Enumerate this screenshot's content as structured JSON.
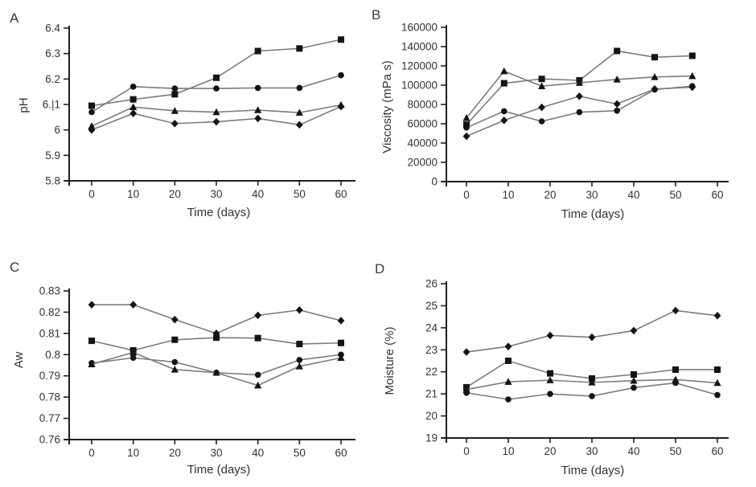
{
  "figure": {
    "background": "#ffffff",
    "axis_color": "#1f1f1f",
    "line_color": "#7c7c7c",
    "marker_color": "#141414",
    "text_color": "#333333"
  },
  "chart_data": [
    {
      "panel": "A",
      "type": "line",
      "xlabel": "Time (days)",
      "ylabel": "pH",
      "xlim": [
        0,
        60
      ],
      "ylim": [
        5.8,
        6.4
      ],
      "grid": false,
      "legend": "none",
      "xticks": [
        0,
        10,
        20,
        30,
        40,
        50,
        60
      ],
      "ytick_values": [
        5.8,
        5.9,
        6.0,
        6.1,
        6.2,
        6.3,
        6.4
      ],
      "ytick_labels": [
        "5.8",
        "5.9",
        "6",
        "6.|1",
        "6.2",
        "6.3",
        "6.4"
      ],
      "x": [
        0,
        10,
        20,
        30,
        40,
        50,
        60
      ],
      "series": [
        {
          "name": "square-series",
          "marker": "square",
          "values": [
            6.095,
            6.12,
            6.14,
            6.205,
            6.31,
            6.32,
            6.355
          ]
        },
        {
          "name": "circle-series",
          "marker": "circle",
          "values": [
            6.07,
            6.17,
            6.163,
            6.163,
            6.165,
            6.165,
            6.215
          ]
        },
        {
          "name": "triangle-series",
          "marker": "triangle",
          "values": [
            6.015,
            6.09,
            6.075,
            6.07,
            6.078,
            6.068,
            6.098
          ]
        },
        {
          "name": "diamond-series",
          "marker": "diamond",
          "values": [
            6.0,
            6.065,
            6.025,
            6.032,
            6.045,
            6.02,
            6.092
          ]
        }
      ]
    },
    {
      "panel": "B",
      "type": "line",
      "xlabel": "Time (days)",
      "ylabel": "Viscosity (mPa s)",
      "xlim": [
        0,
        60
      ],
      "ylim": [
        0,
        160000
      ],
      "grid": false,
      "legend": "none",
      "xticks": [
        0,
        10,
        20,
        30,
        40,
        50,
        60
      ],
      "ytick_values": [
        0,
        20000,
        40000,
        60000,
        80000,
        100000,
        120000,
        140000,
        160000
      ],
      "ytick_labels": [
        "0",
        "20000",
        "40000",
        "60000",
        "80000",
        "100000",
        "120000",
        "140000",
        "160000"
      ],
      "x": [
        0,
        9,
        18,
        27,
        36,
        45,
        54
      ],
      "series": [
        {
          "name": "square-series",
          "marker": "square",
          "values": [
            59000,
            102000,
            106500,
            105000,
            135500,
            129000,
            130500
          ]
        },
        {
          "name": "triangle-series",
          "marker": "triangle",
          "values": [
            66000,
            114500,
            99000,
            102500,
            106000,
            108500,
            109500
          ]
        },
        {
          "name": "circle-series",
          "marker": "circle",
          "values": [
            56000,
            73000,
            62500,
            72000,
            73500,
            95500,
            99000
          ]
        },
        {
          "name": "diamond-series",
          "marker": "diamond",
          "values": [
            47000,
            63500,
            77000,
            88500,
            80500,
            96000,
            98000
          ]
        }
      ]
    },
    {
      "panel": "C",
      "type": "line",
      "xlabel": "Time (days)",
      "ylabel": "Aw",
      "xlim": [
        0,
        60
      ],
      "ylim": [
        0.76,
        0.83
      ],
      "grid": false,
      "legend": "none",
      "xticks": [
        0,
        10,
        20,
        30,
        40,
        50,
        60
      ],
      "ytick_values": [
        0.76,
        0.77,
        0.78,
        0.79,
        0.8,
        0.81,
        0.82,
        0.83
      ],
      "ytick_labels": [
        "0.76",
        "0.77",
        "0.78",
        "0.79",
        "0.8",
        "0.81",
        "0.82",
        "0.83"
      ],
      "x": [
        0,
        10,
        20,
        30,
        40,
        50,
        60
      ],
      "series": [
        {
          "name": "diamond-series",
          "marker": "diamond",
          "values": [
            0.8235,
            0.8235,
            0.8165,
            0.81,
            0.8185,
            0.821,
            0.816
          ]
        },
        {
          "name": "square-series",
          "marker": "square",
          "values": [
            0.8065,
            0.802,
            0.807,
            0.808,
            0.8078,
            0.805,
            0.8055
          ]
        },
        {
          "name": "circle-series",
          "marker": "circle",
          "values": [
            0.796,
            0.7985,
            0.7965,
            0.7915,
            0.7905,
            0.7975,
            0.8
          ]
        },
        {
          "name": "triangle-series",
          "marker": "triangle",
          "values": [
            0.7955,
            0.801,
            0.793,
            0.7915,
            0.7855,
            0.7945,
            0.7985
          ]
        }
      ]
    },
    {
      "panel": "D",
      "type": "line",
      "xlabel": "Time (days)",
      "ylabel": "Moisture (%)",
      "xlim": [
        0,
        60
      ],
      "ylim": [
        19,
        26
      ],
      "grid": false,
      "legend": "none",
      "xticks": [
        0,
        10,
        20,
        30,
        40,
        50,
        60
      ],
      "ytick_values": [
        19,
        20,
        21,
        22,
        23,
        24,
        25,
        26
      ],
      "ytick_labels": [
        "19",
        "20",
        "21",
        "22",
        "23",
        "24",
        "25",
        "26"
      ],
      "x": [
        0,
        10,
        20,
        30,
        40,
        50,
        60
      ],
      "series": [
        {
          "name": "diamond-series",
          "marker": "diamond",
          "values": [
            22.9,
            23.15,
            23.65,
            23.57,
            23.87,
            24.78,
            24.55
          ]
        },
        {
          "name": "square-series",
          "marker": "square",
          "values": [
            21.3,
            22.5,
            21.93,
            21.7,
            21.88,
            22.1,
            22.1
          ]
        },
        {
          "name": "triangle-series",
          "marker": "triangle",
          "values": [
            21.2,
            21.55,
            21.62,
            21.52,
            21.6,
            21.65,
            21.5
          ]
        },
        {
          "name": "circle-series",
          "marker": "circle",
          "values": [
            21.05,
            20.75,
            21.0,
            20.9,
            21.28,
            21.5,
            20.95
          ]
        }
      ]
    }
  ]
}
